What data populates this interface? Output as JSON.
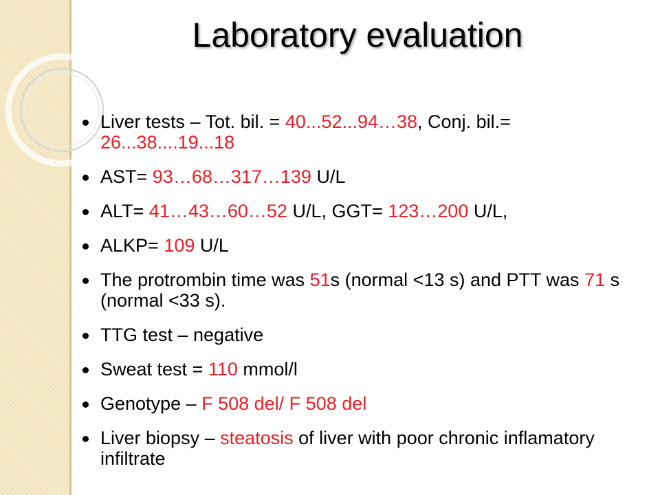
{
  "slide": {
    "title": "Laboratory evaluation",
    "colors": {
      "accent": "#e8202a",
      "text": "#000000",
      "stripe": "#f3e3bb"
    },
    "items": [
      {
        "segments": [
          {
            "text": "Liver tests – Tot. bil. = ",
            "red": false
          },
          {
            "text": "40...52...94…38",
            "red": true
          },
          {
            "text": ", Conj. bil.= ",
            "red": false
          },
          {
            "text": "26...38....19...18",
            "red": true
          }
        ]
      },
      {
        "segments": [
          {
            "text": "AST= ",
            "red": false
          },
          {
            "text": "93…68…317…139",
            "red": true
          },
          {
            "text": " U/L",
            "red": false
          }
        ]
      },
      {
        "segments": [
          {
            "text": "ALT= ",
            "red": false
          },
          {
            "text": "41…43…60…52",
            "red": true
          },
          {
            "text": " U/L, GGT= ",
            "red": false
          },
          {
            "text": "123…200",
            "red": true
          },
          {
            "text": " U/L,",
            "red": false
          }
        ]
      },
      {
        "segments": [
          {
            "text": " ALKP= ",
            "red": false
          },
          {
            "text": "109",
            "red": true
          },
          {
            "text": " U/L",
            "red": false
          }
        ]
      },
      {
        "segments": [
          {
            "text": "The protrombin time was ",
            "red": false
          },
          {
            "text": "51",
            "red": true
          },
          {
            "text": "s (normal <13 s) and PTT was ",
            "red": false
          },
          {
            "text": "71",
            "red": true
          },
          {
            "text": " s (normal <33 s).",
            "red": false
          }
        ]
      },
      {
        "segments": [
          {
            "text": "TTG test – negative",
            "red": false
          }
        ]
      },
      {
        "segments": [
          {
            "text": "Sweat test = ",
            "red": false
          },
          {
            "text": "110",
            "red": true
          },
          {
            "text": " mmol/l",
            "red": false
          }
        ]
      },
      {
        "segments": [
          {
            "text": "Genotype – ",
            "red": false
          },
          {
            "text": "F 508 del/ F 508 del",
            "red": true
          }
        ]
      },
      {
        "segments": [
          {
            "text": "Liver biopsy – ",
            "red": false
          },
          {
            "text": "steatosis",
            "red": true
          },
          {
            "text": " of liver with poor chronic inflamatory infiltrate",
            "red": false
          }
        ]
      }
    ]
  }
}
